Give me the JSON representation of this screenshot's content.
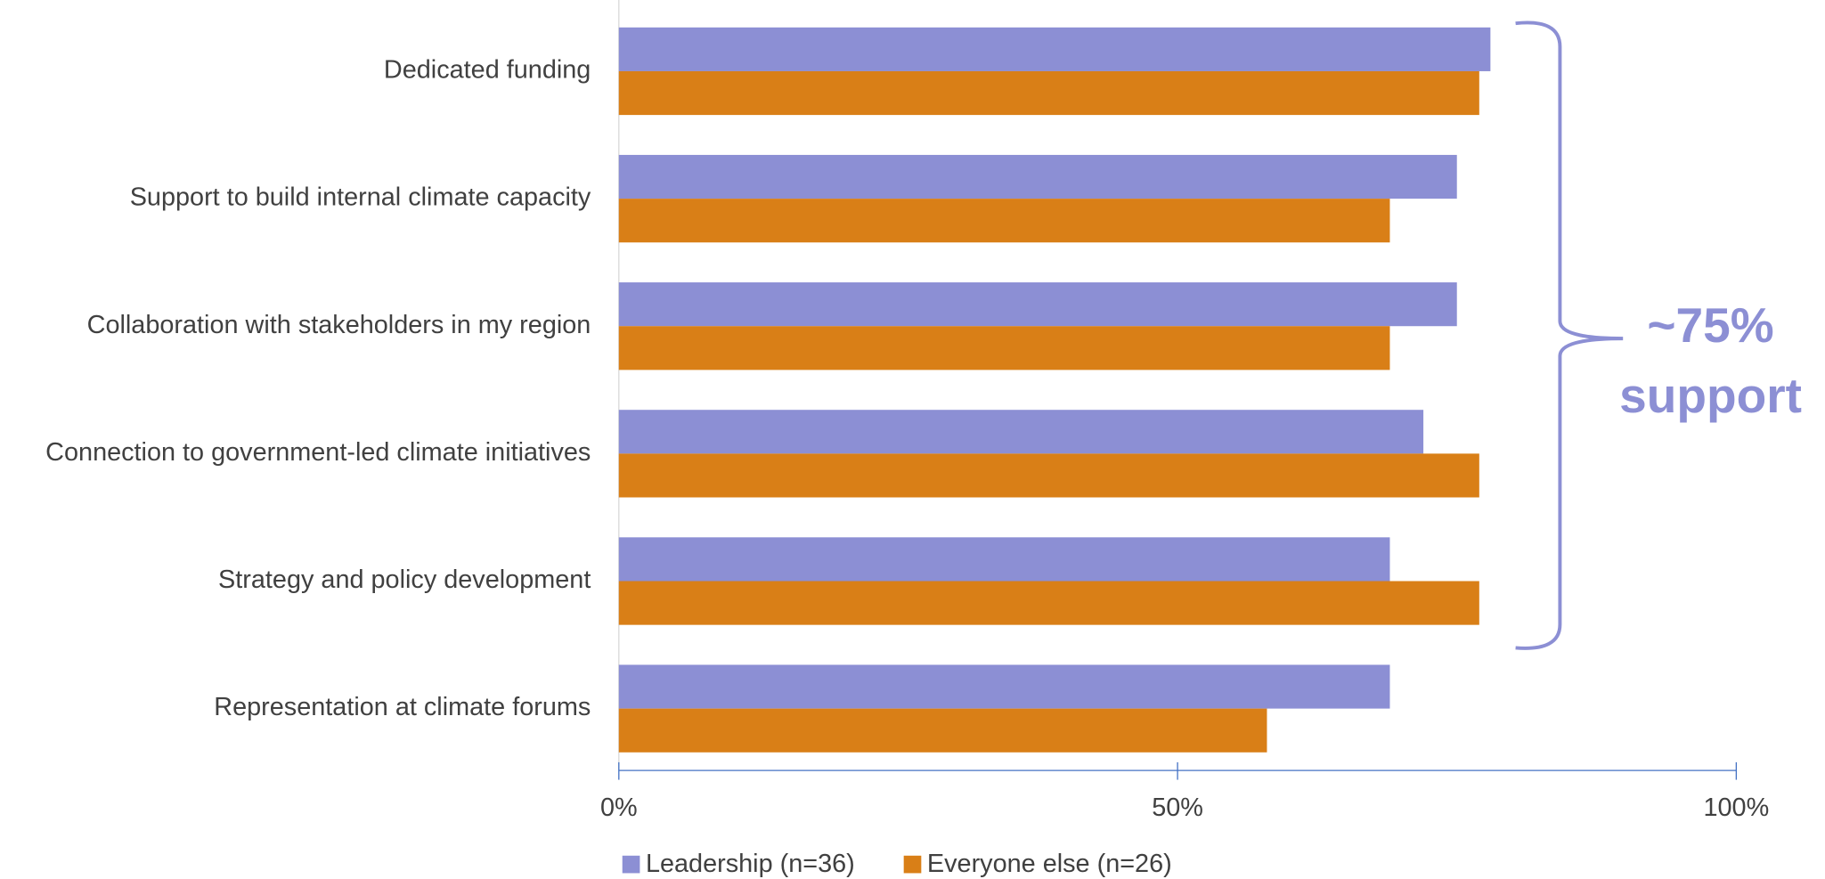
{
  "chart_data": {
    "type": "bar",
    "orientation": "horizontal",
    "categories": [
      "Dedicated funding",
      "Support to build  internal climate capacity",
      "Collaboration with stakeholders in my region",
      "Connection to government-led climate initiatives",
      "Strategy and policy development",
      "Representation at climate forums"
    ],
    "series": [
      {
        "name": "Leadership (n=36)",
        "color": "#8c8fd4",
        "values": [
          78,
          75,
          75,
          72,
          69,
          69
        ]
      },
      {
        "name": "Everyone else (n=26)",
        "color": "#d97f17",
        "values": [
          77,
          69,
          69,
          77,
          77,
          58
        ]
      }
    ],
    "xlim": [
      0,
      100
    ],
    "xticks": [
      {
        "value": 0,
        "label": "0%"
      },
      {
        "value": 50,
        "label": "50%"
      },
      {
        "value": 100,
        "label": "100%"
      }
    ],
    "legend": "bottom",
    "annotation": [
      "~75%",
      "support"
    ]
  }
}
